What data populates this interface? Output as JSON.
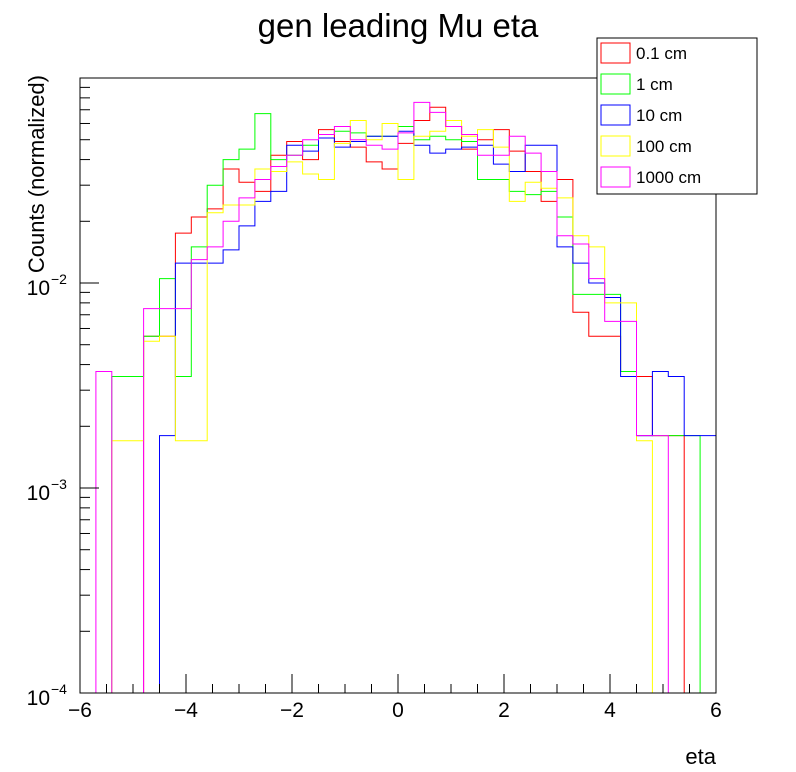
{
  "chart_data": {
    "type": "histogram",
    "title": "gen leading Mu eta",
    "xlabel": "eta",
    "ylabel": "Counts (normalized)",
    "xlim": [
      -6,
      6
    ],
    "ylim": [
      0.0001,
      0.1
    ],
    "y_scale": "log",
    "x_ticks": [
      {
        "value": -6,
        "label": "−6"
      },
      {
        "value": -4,
        "label": "−4"
      },
      {
        "value": -2,
        "label": "−2"
      },
      {
        "value": 0,
        "label": "0"
      },
      {
        "value": 2,
        "label": "2"
      },
      {
        "value": 4,
        "label": "4"
      },
      {
        "value": 6,
        "label": "6"
      }
    ],
    "y_ticks": [
      {
        "value": 0.0001,
        "base": "10",
        "exp": "−4"
      },
      {
        "value": 0.001,
        "base": "10",
        "exp": "−3"
      },
      {
        "value": 0.01,
        "base": "10",
        "exp": "−2"
      }
    ],
    "grid": false,
    "legend_position": "top-right",
    "bin_edges": [
      -6.0,
      -5.7,
      -5.4,
      -5.1,
      -4.8,
      -4.5,
      -4.2,
      -3.9,
      -3.6,
      -3.3,
      -3.0,
      -2.7,
      -2.4,
      -2.1,
      -1.8,
      -1.5,
      -1.2,
      -0.9,
      -0.6,
      -0.3,
      0.0,
      0.3,
      0.6,
      0.9,
      1.2,
      1.5,
      1.8,
      2.1,
      2.4,
      2.7,
      3.0,
      3.3,
      3.6,
      3.9,
      4.2,
      4.5,
      4.8,
      5.1,
      5.4,
      5.7,
      6.0
    ],
    "series": [
      {
        "name": "0.1 cm",
        "color": "#ff0000",
        "values": [
          0,
          0,
          0,
          0,
          0.0055,
          0.0055,
          0.0175,
          0.021,
          0.023,
          0.036,
          0.031,
          0.028,
          0.042,
          0.049,
          0.04,
          0.056,
          0.049,
          0.046,
          0.039,
          0.036,
          0.048,
          0.062,
          0.072,
          0.058,
          0.045,
          0.05,
          0.056,
          0.044,
          0.035,
          0.025,
          0.032,
          0.0072,
          0.0055,
          0.0055,
          0.0037,
          0.0035,
          0.0018,
          0.0018,
          0,
          0
        ]
      },
      {
        "name": "1 cm",
        "color": "#00ff00",
        "values": [
          0,
          0,
          0.0035,
          0.0035,
          0.0055,
          0.0105,
          0.0035,
          0.015,
          0.03,
          0.04,
          0.045,
          0.067,
          0.04,
          0.042,
          0.047,
          0.053,
          0.055,
          0.054,
          0.052,
          0.052,
          0.058,
          0.05,
          0.052,
          0.05,
          0.049,
          0.032,
          0.032,
          0.028,
          0.027,
          0.028,
          0.021,
          0.0088,
          0.0088,
          0.0088,
          0.0037,
          0.0018,
          0.0018,
          0.0018,
          0.0018,
          0
        ]
      },
      {
        "name": "10 cm",
        "color": "#0000ff",
        "values": [
          0,
          0,
          0,
          0,
          0,
          0.0018,
          0.0125,
          0.0125,
          0.0125,
          0.0145,
          0.019,
          0.025,
          0.028,
          0.047,
          0.044,
          0.051,
          0.046,
          0.049,
          0.052,
          0.052,
          0.055,
          0.047,
          0.043,
          0.045,
          0.046,
          0.047,
          0.038,
          0.035,
          0.047,
          0.047,
          0.015,
          0.0125,
          0.01,
          0.0085,
          0.0035,
          0.0018,
          0.0037,
          0.0035,
          0.0018,
          0.0018
        ]
      },
      {
        "name": "100 cm",
        "color": "#ffff00",
        "values": [
          0,
          0,
          0.0017,
          0.0017,
          0.0052,
          0.0055,
          0.0017,
          0.0017,
          0.022,
          0.024,
          0.024,
          0.036,
          0.035,
          0.039,
          0.034,
          0.032,
          0.048,
          0.062,
          0.05,
          0.06,
          0.032,
          0.052,
          0.055,
          0.062,
          0.052,
          0.056,
          0.046,
          0.025,
          0.031,
          0.029,
          0.026,
          0.017,
          0.015,
          0.008,
          0.008,
          0.0017,
          0,
          0,
          0,
          0
        ]
      },
      {
        "name": "1000 cm",
        "color": "#ff00ff",
        "values": [
          0,
          0.0037,
          0,
          0,
          0.0075,
          0.0075,
          0.0075,
          0.013,
          0.015,
          0.02,
          0.026,
          0.032,
          0.037,
          0.042,
          0.05,
          0.053,
          0.058,
          0.05,
          0.047,
          0.045,
          0.054,
          0.076,
          0.068,
          0.058,
          0.053,
          0.042,
          0.042,
          0.052,
          0.043,
          0.035,
          0.017,
          0.0155,
          0.0105,
          0.0065,
          0.0065,
          0.0018,
          0.0018,
          0,
          0,
          0
        ]
      }
    ]
  }
}
